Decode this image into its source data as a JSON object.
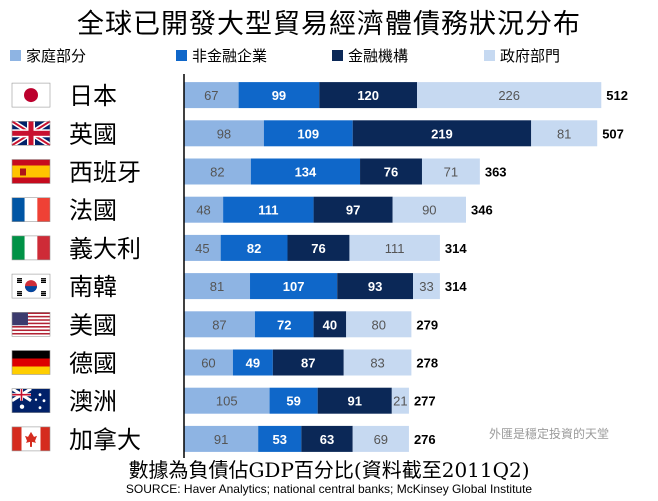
{
  "title": "全球已開發大型貿易經濟體債務狀況分布",
  "footnote": "數據為負債佔GDP百分比(資料截至2011Q2)",
  "source": "SOURCE: Haver Analytics; national central banks; McKinsey Global Institute",
  "watermark": "外匯是穩定投資的天堂",
  "colors": {
    "household": "#8eb4e3",
    "nonfinancial": "#0f67c9",
    "financial": "#0b2857",
    "government": "#c6d9f1",
    "axis": "#000000"
  },
  "chart_data": {
    "type": "bar",
    "orientation": "horizontal",
    "stacked": true,
    "unit": "% of GDP",
    "categories": [
      "日本",
      "英國",
      "西班牙",
      "法國",
      "義大利",
      "南韓",
      "美國",
      "德國",
      "澳洲",
      "加拿大"
    ],
    "category_flags": [
      "flag-japan-icon",
      "flag-uk-icon",
      "flag-spain-icon",
      "flag-france-icon",
      "flag-italy-icon",
      "flag-south-korea-icon",
      "flag-usa-icon",
      "flag-germany-icon",
      "flag-australia-icon",
      "flag-canada-icon"
    ],
    "series": [
      {
        "name": "家庭部分",
        "color": "#8eb4e3",
        "values": [
          67,
          98,
          82,
          48,
          45,
          81,
          87,
          60,
          105,
          91
        ]
      },
      {
        "name": "非金融企業",
        "color": "#0f67c9",
        "values": [
          99,
          109,
          134,
          111,
          82,
          107,
          72,
          49,
          59,
          53
        ]
      },
      {
        "name": "金融機構",
        "color": "#0b2857",
        "values": [
          120,
          219,
          76,
          97,
          76,
          93,
          40,
          87,
          91,
          63
        ]
      },
      {
        "name": "政府部門",
        "color": "#c6d9f1",
        "values": [
          226,
          81,
          71,
          90,
          111,
          33,
          80,
          83,
          21,
          69
        ]
      }
    ],
    "totals": [
      512,
      507,
      363,
      346,
      314,
      314,
      279,
      278,
      277,
      276
    ],
    "legend_position": "top",
    "grid": false
  }
}
